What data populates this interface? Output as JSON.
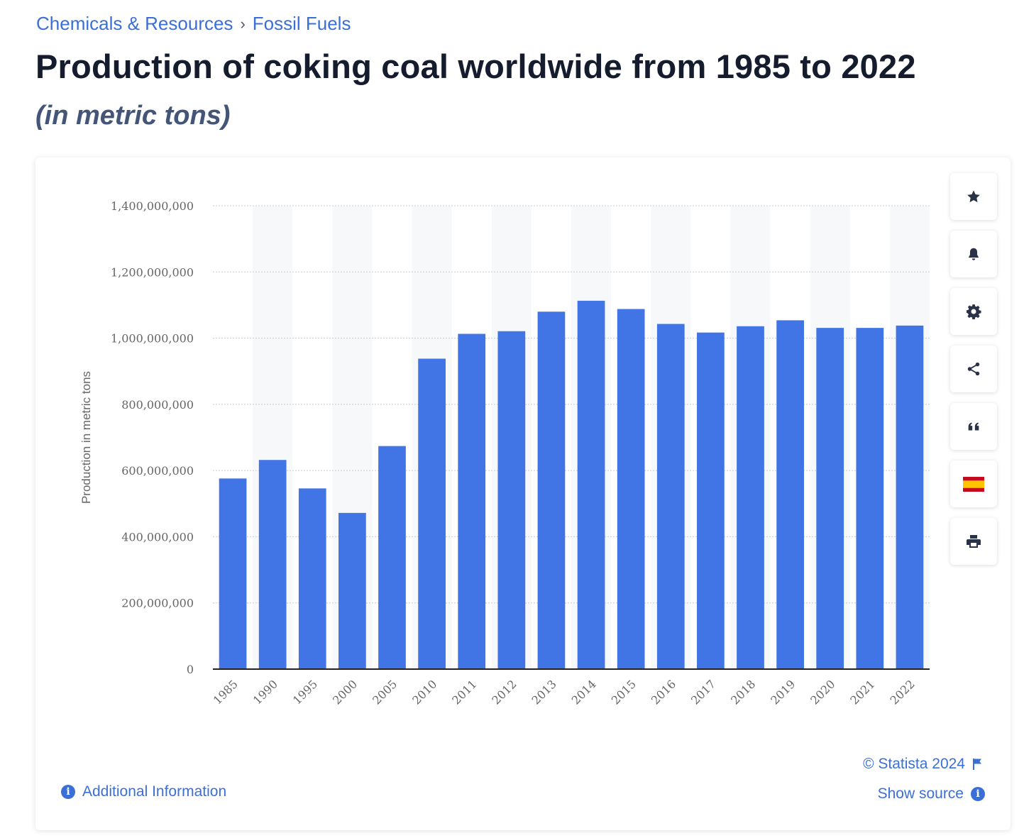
{
  "breadcrumb": {
    "items": [
      "Chemicals & Resources",
      "Fossil Fuels"
    ],
    "separator": "›"
  },
  "header": {
    "title": "Production of coking coal worldwide from 1985 to 2022",
    "subtitle": "(in metric tons)"
  },
  "toolbar": {
    "buttons": [
      {
        "icon": "star-icon"
      },
      {
        "icon": "bell-icon"
      },
      {
        "icon": "gear-icon"
      },
      {
        "icon": "share-icon"
      },
      {
        "icon": "quote-icon"
      },
      {
        "icon": "spain-flag-icon"
      },
      {
        "icon": "print-icon"
      }
    ]
  },
  "footer": {
    "copyright": "© Statista 2024",
    "show_source": "Show source",
    "additional_info": "Additional Information"
  },
  "colors": {
    "bar": "#4174e4",
    "link": "#3b6fd8",
    "title": "#141c2e"
  },
  "chart_data": {
    "type": "bar",
    "ylabel": "Production in metric tons",
    "xlabel": "",
    "ylim": [
      0,
      1400000000
    ],
    "yticks": [
      0,
      200000000,
      400000000,
      600000000,
      800000000,
      1000000000,
      1200000000,
      1400000000
    ],
    "ytick_labels": [
      "0",
      "200,000,000",
      "400,000,000",
      "600,000,000",
      "800,000,000",
      "1,000,000,000",
      "1,200,000,000",
      "1,400,000,000"
    ],
    "grid": true,
    "categories": [
      "1985",
      "1990",
      "1995",
      "2000",
      "2005",
      "2010",
      "2011",
      "2012",
      "2013",
      "2014",
      "2015",
      "2016",
      "2017",
      "2018",
      "2019",
      "2020",
      "2021",
      "2022"
    ],
    "values": [
      576000000,
      632000000,
      546000000,
      472000000,
      674000000,
      938000000,
      1013000000,
      1021000000,
      1080000000,
      1113000000,
      1088000000,
      1043000000,
      1017000000,
      1036000000,
      1054000000,
      1031000000,
      1031000000,
      1038000000
    ]
  }
}
